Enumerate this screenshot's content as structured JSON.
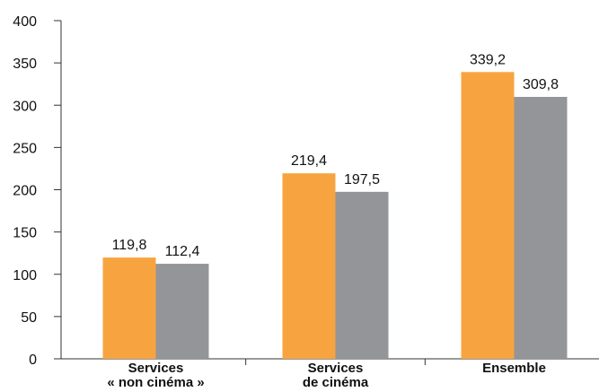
{
  "chart_data": {
    "type": "bar",
    "categories": [
      [
        "Services",
        "« non cinéma »"
      ],
      [
        "Services",
        "de cinéma"
      ],
      [
        "Ensemble"
      ]
    ],
    "series": [
      {
        "values": [
          119.8,
          219.4,
          339.2
        ],
        "labels": [
          "119,8",
          "219,4",
          "339,2"
        ],
        "color": "#F7A440"
      },
      {
        "values": [
          112.4,
          197.5,
          309.8
        ],
        "labels": [
          "112,4",
          "197,5",
          "309,8"
        ],
        "color": "#939598"
      }
    ],
    "ylim": [
      0,
      400
    ],
    "yticks": [
      0,
      50,
      100,
      150,
      200,
      250,
      300,
      350,
      400
    ],
    "title": "",
    "xlabel": "",
    "ylabel": "",
    "grid": false,
    "legend": "none"
  }
}
